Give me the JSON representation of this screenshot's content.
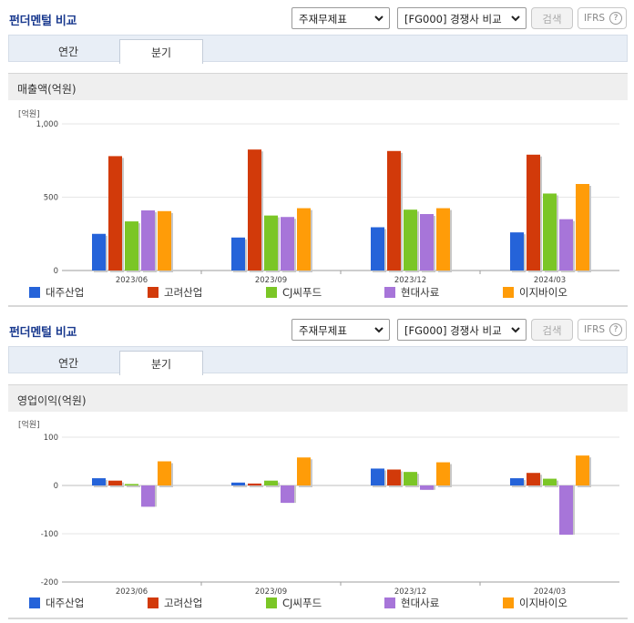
{
  "colors": [
    "#2563d9",
    "#d23a0a",
    "#7bc626",
    "#a775d9",
    "#ff9c08"
  ],
  "companies": [
    "대주산업",
    "고려산업",
    "CJ씨푸드",
    "현대사료",
    "이지바이오"
  ],
  "panels": [
    {
      "title": "펀더멘털 비교",
      "select1": "주재무제표",
      "select2": "[FG000] 경쟁사 비교",
      "search_btn": "검색",
      "ifrs_label": "IFRS",
      "help": "?",
      "tabs": [
        "연간",
        "분기"
      ],
      "active_tab": 1,
      "section_title": "매출액(억원)",
      "unit": "[억원]"
    },
    {
      "title": "펀더멘털 비교",
      "select1": "주재무제표",
      "select2": "[FG000] 경쟁사 비교",
      "search_btn": "검색",
      "ifrs_label": "IFRS",
      "help": "?",
      "tabs": [
        "연간",
        "분기"
      ],
      "active_tab": 1,
      "section_title": "영업이익(억원)",
      "unit": "[억원]"
    }
  ],
  "chart_data": [
    {
      "type": "bar",
      "title": "매출액(억원)",
      "ylabel": "[억원]",
      "categories": [
        "2023/06",
        "2023/09",
        "2023/12",
        "2024/03"
      ],
      "ylim": [
        0,
        1000
      ],
      "yticks": [
        0,
        500,
        1000
      ],
      "ytick_labels": [
        "0",
        "500",
        "1,000"
      ],
      "grid": true,
      "legend": "bottom",
      "series": [
        {
          "name": "대주산업",
          "values": [
            250,
            225,
            295,
            260
          ]
        },
        {
          "name": "고려산업",
          "values": [
            780,
            825,
            815,
            790
          ]
        },
        {
          "name": "CJ씨푸드",
          "values": [
            335,
            375,
            415,
            525
          ]
        },
        {
          "name": "현대사료",
          "values": [
            410,
            365,
            385,
            350
          ]
        },
        {
          "name": "이지바이오",
          "values": [
            405,
            425,
            425,
            590
          ]
        }
      ]
    },
    {
      "type": "bar",
      "title": "영업이익(억원)",
      "ylabel": "[억원]",
      "categories": [
        "2023/06",
        "2023/09",
        "2023/12",
        "2024/03"
      ],
      "ylim": [
        -200,
        100
      ],
      "yticks": [
        -200,
        -100,
        0,
        100
      ],
      "ytick_labels": [
        "-200",
        "-100",
        "0",
        "100"
      ],
      "grid": true,
      "legend": "bottom",
      "series": [
        {
          "name": "대주산업",
          "values": [
            15,
            6,
            35,
            15
          ]
        },
        {
          "name": "고려산업",
          "values": [
            10,
            4,
            33,
            26
          ]
        },
        {
          "name": "CJ씨푸드",
          "values": [
            3,
            10,
            28,
            14
          ]
        },
        {
          "name": "현대사료",
          "values": [
            -44,
            -36,
            -9,
            -102
          ]
        },
        {
          "name": "이지바이오",
          "values": [
            50,
            58,
            48,
            62
          ]
        }
      ]
    }
  ]
}
